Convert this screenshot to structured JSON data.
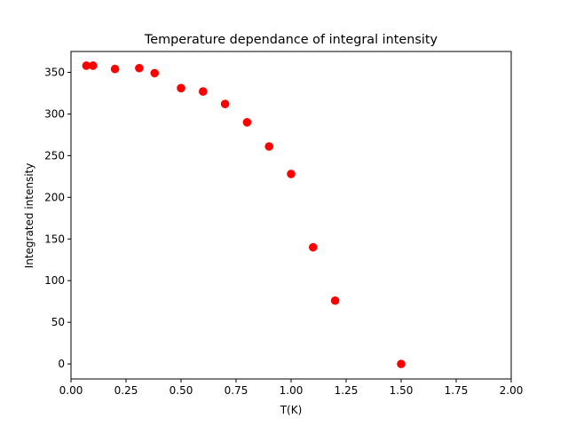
{
  "chart_data": {
    "type": "scatter",
    "title": "Temperature dependance of integral intensity",
    "xlabel": "T(K)",
    "ylabel": "Integrated intensity",
    "xlim": [
      0.0,
      2.0
    ],
    "ylim": [
      -18,
      375
    ],
    "x_ticks": [
      0.0,
      0.25,
      0.5,
      0.75,
      1.0,
      1.25,
      1.5,
      1.75,
      2.0
    ],
    "x_tick_labels": [
      "0.00",
      "0.25",
      "0.50",
      "0.75",
      "1.00",
      "1.25",
      "1.50",
      "1.75",
      "2.00"
    ],
    "y_ticks": [
      0,
      50,
      100,
      150,
      200,
      250,
      300,
      350
    ],
    "y_tick_labels": [
      "0",
      "50",
      "100",
      "150",
      "200",
      "250",
      "300",
      "350"
    ],
    "grid": false,
    "legend": "none",
    "marker_color": "#ff0000",
    "series": [
      {
        "x": [
          0.07,
          0.1,
          0.2,
          0.31,
          0.38,
          0.5,
          0.6,
          0.7,
          0.8,
          0.9,
          1.0,
          1.1,
          1.2,
          1.5
        ],
        "y": [
          358,
          358,
          354,
          355,
          349,
          331,
          327,
          312,
          290,
          261,
          228,
          140,
          76,
          0
        ]
      }
    ]
  }
}
